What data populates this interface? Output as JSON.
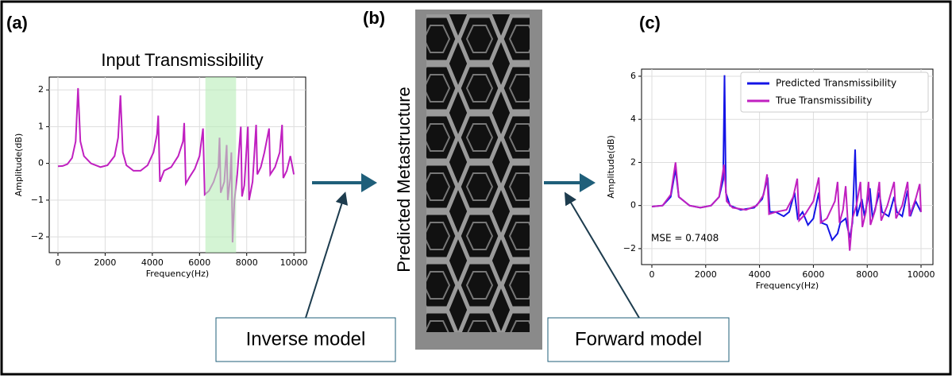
{
  "panel_labels": [
    "(a)",
    "(b)",
    "(c)"
  ],
  "structure_label": "Predicted Metastructure",
  "inverse_box": "Inverse model",
  "forward_box": "Forward model",
  "chart_data": [
    {
      "type": "line",
      "title": "Input Transmissibility",
      "x_label": "Frequency(Hz)",
      "y_label": "Amplitude(dB)",
      "grid": true,
      "color": "#c020c0",
      "highlight_x": [
        6250,
        7550
      ],
      "highlight_color": "#b8ecb8",
      "xlim": [
        -370,
        10500
      ],
      "ylim": [
        -2.43,
        2.35
      ],
      "xticks": [
        0,
        2000,
        4000,
        6000,
        8000,
        10000
      ],
      "yticks": [
        {
          "value": -2,
          "label": "−2"
        },
        {
          "value": -1,
          "label": "−1"
        },
        0,
        1,
        2
      ],
      "x": [
        0,
        200,
        400,
        600,
        750,
        850,
        950,
        1100,
        1400,
        1800,
        2100,
        2400,
        2550,
        2650,
        2750,
        2900,
        3200,
        3500,
        3800,
        4050,
        4200,
        4250,
        4320,
        4500,
        4800,
        5100,
        5300,
        5350,
        5420,
        5600,
        5800,
        6000,
        6150,
        6220,
        6400,
        6600,
        6800,
        6850,
        6900,
        7050,
        7150,
        7200,
        7300,
        7350,
        7400,
        7480,
        7600,
        7750,
        7800,
        7900,
        8050,
        8100,
        8250,
        8400,
        8450,
        8600,
        8750,
        8950,
        9000,
        9200,
        9400,
        9500,
        9550,
        9700,
        9850,
        10000
      ],
      "values": [
        -0.08,
        -0.07,
        -0.02,
        0.15,
        0.6,
        2.05,
        0.6,
        0.2,
        0.0,
        -0.1,
        -0.05,
        0.2,
        0.7,
        1.85,
        0.3,
        -0.05,
        -0.2,
        -0.2,
        -0.05,
        0.3,
        0.8,
        1.3,
        -0.5,
        -0.2,
        -0.1,
        0.2,
        0.6,
        1.1,
        -0.55,
        -0.35,
        -0.15,
        0.2,
        0.95,
        -0.85,
        -0.75,
        -0.5,
        -0.1,
        0.7,
        -0.8,
        -0.5,
        0.5,
        -1.0,
        -0.4,
        0.3,
        -2.15,
        -1.0,
        -0.3,
        1.0,
        -0.9,
        -0.6,
        1.0,
        -1.0,
        -0.5,
        1.05,
        -0.3,
        -0.1,
        0.3,
        0.95,
        -0.3,
        -0.1,
        0.3,
        1.05,
        -0.4,
        -0.2,
        0.2,
        -0.3
      ]
    },
    {
      "type": "line",
      "x_label": "Frequency(Hz)",
      "y_label": "Amplitude(dB)",
      "grid": true,
      "annotation": "MSE = 0.7408",
      "legend": "upper right",
      "xlim": [
        -383,
        10442
      ],
      "ylim": [
        -2.74,
        6.33
      ],
      "xticks": [
        0,
        2000,
        4000,
        6000,
        8000,
        10000
      ],
      "yticks": [
        {
          "value": -2,
          "label": "−2"
        },
        0,
        2,
        4,
        6
      ],
      "series": [
        {
          "name": "Predicted Transmissibility",
          "color": "#1414e6",
          "x": [
            0,
            400,
            700,
            880,
            1000,
            1400,
            1800,
            2200,
            2500,
            2650,
            2700,
            2750,
            2900,
            3300,
            3800,
            4100,
            4300,
            4380,
            4600,
            4900,
            5100,
            5300,
            5420,
            5600,
            5800,
            6000,
            6200,
            6300,
            6500,
            6700,
            6900,
            7000,
            7200,
            7350,
            7450,
            7550,
            7620,
            7800,
            7900,
            8100,
            8200,
            8450,
            8550,
            8800,
            9000,
            9100,
            9300,
            9500,
            9600,
            9800,
            10000
          ],
          "values": [
            -0.05,
            0.0,
            0.4,
            1.7,
            0.4,
            0.0,
            -0.1,
            0.0,
            0.4,
            1.2,
            6.05,
            0.6,
            0.0,
            -0.2,
            -0.1,
            0.3,
            1.3,
            -0.3,
            -0.3,
            -0.5,
            -0.3,
            0.6,
            -0.6,
            -0.3,
            -0.9,
            -0.6,
            0.6,
            -0.8,
            -0.9,
            -1.6,
            -1.3,
            -0.8,
            -0.6,
            -1.5,
            -0.8,
            2.6,
            -0.5,
            0.3,
            -0.5,
            0.8,
            -0.6,
            0.6,
            -0.3,
            -0.5,
            0.4,
            -0.3,
            -0.5,
            0.7,
            -0.5,
            0.2,
            -0.3
          ]
        },
        {
          "name": "True Transmissibility",
          "color": "#c020c0",
          "x": [
            0,
            400,
            700,
            880,
            1000,
            1400,
            1800,
            2200,
            2500,
            2680,
            2780,
            3000,
            3500,
            3900,
            4150,
            4280,
            4350,
            4600,
            5000,
            5250,
            5400,
            5470,
            5700,
            6000,
            6200,
            6270,
            6500,
            6800,
            6900,
            6970,
            7100,
            7200,
            7300,
            7350,
            7450,
            7600,
            7750,
            7820,
            7950,
            8050,
            8120,
            8300,
            8450,
            8520,
            8750,
            9000,
            9070,
            9300,
            9500,
            9570,
            9800,
            9950,
            10000
          ],
          "values": [
            -0.05,
            0.0,
            0.5,
            2.0,
            0.4,
            0.0,
            -0.1,
            0.0,
            0.4,
            1.9,
            0.2,
            -0.1,
            -0.2,
            0.0,
            0.5,
            1.45,
            -0.4,
            -0.3,
            -0.2,
            0.4,
            1.25,
            -0.7,
            -0.4,
            0.2,
            1.3,
            -0.8,
            -0.6,
            0.2,
            1.1,
            -0.8,
            -0.2,
            0.9,
            -1.2,
            -2.1,
            -0.6,
            0.0,
            1.1,
            -1.0,
            -0.3,
            1.1,
            -0.9,
            -0.2,
            1.1,
            -0.7,
            0.0,
            1.1,
            -0.6,
            0.0,
            1.1,
            -0.5,
            0.3,
            1.0,
            -0.3
          ]
        }
      ]
    }
  ]
}
